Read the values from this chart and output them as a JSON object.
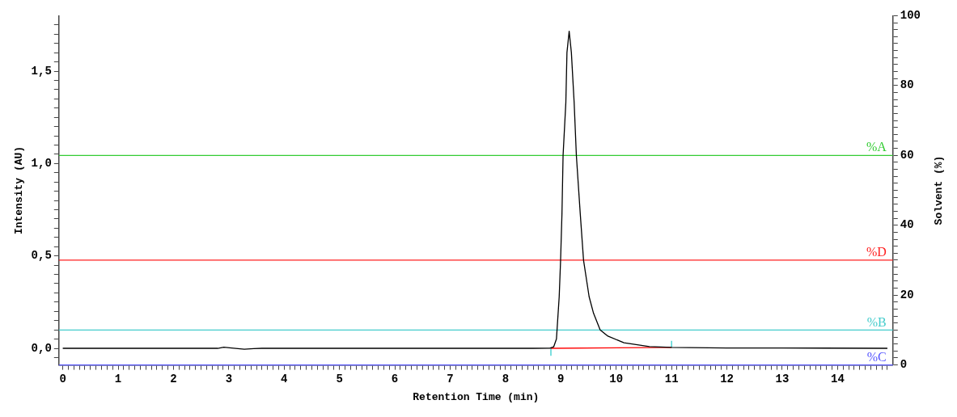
{
  "chart_data": {
    "type": "line",
    "xlabel": "Retention Time (min)",
    "ylabel": "Intensity (AU)",
    "y2label": "Solvent (%)",
    "xlim": [
      -0.07,
      15
    ],
    "ylim": [
      -0.09,
      1.8
    ],
    "y2lim": [
      0,
      100
    ],
    "xticks": [
      0,
      {
        "value": 0.1,
        "label": null
      },
      {
        "value": 0.2,
        "label": null
      },
      {
        "value": 0.3,
        "label": null
      },
      {
        "value": 0.4,
        "label": null
      },
      {
        "value": 0.5,
        "label": null
      },
      {
        "value": 0.6,
        "label": null
      },
      {
        "value": 0.7,
        "label": null
      },
      {
        "value": 0.8,
        "label": null
      },
      {
        "value": 0.9,
        "label": null
      },
      1,
      {
        "value": 1.1,
        "label": null
      },
      {
        "value": 1.2,
        "label": null
      },
      {
        "value": 1.3,
        "label": null
      },
      {
        "value": 1.4,
        "label": null
      },
      {
        "value": 1.5,
        "label": null
      },
      {
        "value": 1.6,
        "label": null
      },
      {
        "value": 1.7,
        "label": null
      },
      {
        "value": 1.8,
        "label": null
      },
      {
        "value": 1.9,
        "label": null
      },
      2,
      {
        "value": 2.1,
        "label": null
      },
      {
        "value": 2.2,
        "label": null
      },
      {
        "value": 2.3,
        "label": null
      },
      {
        "value": 2.4,
        "label": null
      },
      {
        "value": 2.5,
        "label": null
      },
      {
        "value": 2.6,
        "label": null
      },
      {
        "value": 2.7,
        "label": null
      },
      {
        "value": 2.8,
        "label": null
      },
      {
        "value": 2.9,
        "label": null
      },
      3,
      {
        "value": 3.1,
        "label": null
      },
      {
        "value": 3.2,
        "label": null
      },
      {
        "value": 3.3,
        "label": null
      },
      {
        "value": 3.4,
        "label": null
      },
      {
        "value": 3.5,
        "label": null
      },
      {
        "value": 3.6,
        "label": null
      },
      {
        "value": 3.7,
        "label": null
      },
      {
        "value": 3.8,
        "label": null
      },
      {
        "value": 3.9,
        "label": null
      },
      4,
      {
        "value": 4.1,
        "label": null
      },
      {
        "value": 4.2,
        "label": null
      },
      {
        "value": 4.3,
        "label": null
      },
      {
        "value": 4.4,
        "label": null
      },
      {
        "value": 4.5,
        "label": null
      },
      {
        "value": 4.6,
        "label": null
      },
      {
        "value": 4.7,
        "label": null
      },
      {
        "value": 4.8,
        "label": null
      },
      {
        "value": 4.9,
        "label": null
      },
      5,
      {
        "value": 5.1,
        "label": null
      },
      {
        "value": 5.2,
        "label": null
      },
      {
        "value": 5.3,
        "label": null
      },
      {
        "value": 5.4,
        "label": null
      },
      {
        "value": 5.5,
        "label": null
      },
      {
        "value": 5.6,
        "label": null
      },
      {
        "value": 5.7,
        "label": null
      },
      {
        "value": 5.8,
        "label": null
      },
      {
        "value": 5.9,
        "label": null
      },
      6,
      {
        "value": 6.1,
        "label": null
      },
      {
        "value": 6.2,
        "label": null
      },
      {
        "value": 6.3,
        "label": null
      },
      {
        "value": 6.4,
        "label": null
      },
      {
        "value": 6.5,
        "label": null
      },
      {
        "value": 6.6,
        "label": null
      },
      {
        "value": 6.7,
        "label": null
      },
      {
        "value": 6.8,
        "label": null
      },
      {
        "value": 6.9,
        "label": null
      },
      7,
      {
        "value": 7.1,
        "label": null
      },
      {
        "value": 7.2,
        "label": null
      },
      {
        "value": 7.3,
        "label": null
      },
      {
        "value": 7.4,
        "label": null
      },
      {
        "value": 7.5,
        "label": null
      },
      {
        "value": 7.6,
        "label": null
      },
      {
        "value": 7.7,
        "label": null
      },
      {
        "value": 7.8,
        "label": null
      },
      {
        "value": 7.9,
        "label": null
      },
      8,
      {
        "value": 8.1,
        "label": null
      },
      {
        "value": 8.2,
        "label": null
      },
      {
        "value": 8.3,
        "label": null
      },
      {
        "value": 8.4,
        "label": null
      },
      {
        "value": 8.5,
        "label": null
      },
      {
        "value": 8.6,
        "label": null
      },
      {
        "value": 8.7,
        "label": null
      },
      {
        "value": 8.8,
        "label": null
      },
      {
        "value": 8.9,
        "label": null
      },
      9,
      {
        "value": 9.1,
        "label": null
      },
      {
        "value": 9.2,
        "label": null
      },
      {
        "value": 9.3,
        "label": null
      },
      {
        "value": 9.4,
        "label": null
      },
      {
        "value": 9.5,
        "label": null
      },
      {
        "value": 9.6,
        "label": null
      },
      {
        "value": 9.7,
        "label": null
      },
      {
        "value": 9.8,
        "label": null
      },
      {
        "value": 9.9,
        "label": null
      },
      10,
      {
        "value": 10.1,
        "label": null
      },
      {
        "value": 10.2,
        "label": null
      },
      {
        "value": 10.3,
        "label": null
      },
      {
        "value": 10.4,
        "label": null
      },
      {
        "value": 10.5,
        "label": null
      },
      {
        "value": 10.6,
        "label": null
      },
      {
        "value": 10.7,
        "label": null
      },
      {
        "value": 10.8,
        "label": null
      },
      {
        "value": 10.9,
        "label": null
      },
      11,
      {
        "value": 11.1,
        "label": null
      },
      {
        "value": 11.2,
        "label": null
      },
      {
        "value": 11.3,
        "label": null
      },
      {
        "value": 11.4,
        "label": null
      },
      {
        "value": 11.5,
        "label": null
      },
      {
        "value": 11.6,
        "label": null
      },
      {
        "value": 11.7,
        "label": null
      },
      {
        "value": 11.8,
        "label": null
      },
      {
        "value": 11.9,
        "label": null
      },
      12,
      {
        "value": 12.1,
        "label": null
      },
      {
        "value": 12.2,
        "label": null
      },
      {
        "value": 12.3,
        "label": null
      },
      {
        "value": 12.4,
        "label": null
      },
      {
        "value": 12.5,
        "label": null
      },
      {
        "value": 12.6,
        "label": null
      },
      {
        "value": 12.7,
        "label": null
      },
      {
        "value": 12.8,
        "label": null
      },
      {
        "value": 12.9,
        "label": null
      },
      13,
      {
        "value": 13.1,
        "label": null
      },
      {
        "value": 13.2,
        "label": null
      },
      {
        "value": 13.3,
        "label": null
      },
      {
        "value": 13.4,
        "label": null
      },
      {
        "value": 13.5,
        "label": null
      },
      {
        "value": 13.6,
        "label": null
      },
      {
        "value": 13.7,
        "label": null
      },
      {
        "value": 13.8,
        "label": null
      },
      {
        "value": 13.9,
        "label": null
      },
      14,
      {
        "value": 14.1,
        "label": null
      },
      {
        "value": 14.2,
        "label": null
      },
      {
        "value": 14.3,
        "label": null
      },
      {
        "value": 14.4,
        "label": null
      },
      {
        "value": 14.5,
        "label": null
      },
      {
        "value": 14.6,
        "label": null
      },
      {
        "value": 14.7,
        "label": null
      },
      {
        "value": 14.8,
        "label": null
      },
      {
        "value": 14.9,
        "label": null
      }
    ],
    "yticks": [
      {
        "value": -0.05,
        "label": null
      },
      {
        "value": 0,
        "label": "0,0"
      },
      {
        "value": 0.05,
        "label": null
      },
      {
        "value": 0.1,
        "label": null
      },
      {
        "value": 0.15,
        "label": null
      },
      {
        "value": 0.2,
        "label": null
      },
      {
        "value": 0.25,
        "label": null
      },
      {
        "value": 0.3,
        "label": null
      },
      {
        "value": 0.35,
        "label": null
      },
      {
        "value": 0.4,
        "label": null
      },
      {
        "value": 0.45,
        "label": null
      },
      {
        "value": 0.5,
        "label": "0,5"
      },
      {
        "value": 0.55,
        "label": null
      },
      {
        "value": 0.6,
        "label": null
      },
      {
        "value": 0.65,
        "label": null
      },
      {
        "value": 0.7,
        "label": null
      },
      {
        "value": 0.75,
        "label": null
      },
      {
        "value": 0.8,
        "label": null
      },
      {
        "value": 0.85,
        "label": null
      },
      {
        "value": 0.9,
        "label": null
      },
      {
        "value": 0.95,
        "label": null
      },
      {
        "value": 1,
        "label": "1,0"
      },
      {
        "value": 1.05,
        "label": null
      },
      {
        "value": 1.1,
        "label": null
      },
      {
        "value": 1.15,
        "label": null
      },
      {
        "value": 1.2,
        "label": null
      },
      {
        "value": 1.25,
        "label": null
      },
      {
        "value": 1.3,
        "label": null
      },
      {
        "value": 1.35,
        "label": null
      },
      {
        "value": 1.4,
        "label": null
      },
      {
        "value": 1.45,
        "label": null
      },
      {
        "value": 1.5,
        "label": "1,5"
      },
      {
        "value": 1.55,
        "label": null
      },
      {
        "value": 1.6,
        "label": null
      },
      {
        "value": 1.65,
        "label": null
      },
      {
        "value": 1.7,
        "label": null
      },
      {
        "value": 1.75,
        "label": null
      }
    ],
    "y2ticks": [
      0,
      {
        "value": 2,
        "label": null
      },
      {
        "value": 4,
        "label": null
      },
      {
        "value": 6,
        "label": null
      },
      {
        "value": 8,
        "label": null
      },
      {
        "value": 10,
        "label": null
      },
      {
        "value": 12,
        "label": null
      },
      {
        "value": 14,
        "label": null
      },
      {
        "value": 16,
        "label": null
      },
      {
        "value": 18,
        "label": null
      },
      20,
      {
        "value": 22,
        "label": null
      },
      {
        "value": 24,
        "label": null
      },
      {
        "value": 26,
        "label": null
      },
      {
        "value": 28,
        "label": null
      },
      {
        "value": 30,
        "label": null
      },
      {
        "value": 32,
        "label": null
      },
      {
        "value": 34,
        "label": null
      },
      {
        "value": 36,
        "label": null
      },
      {
        "value": 38,
        "label": null
      },
      40,
      {
        "value": 42,
        "label": null
      },
      {
        "value": 44,
        "label": null
      },
      {
        "value": 46,
        "label": null
      },
      {
        "value": 48,
        "label": null
      },
      {
        "value": 50,
        "label": null
      },
      {
        "value": 52,
        "label": null
      },
      {
        "value": 54,
        "label": null
      },
      {
        "value": 56,
        "label": null
      },
      {
        "value": 58,
        "label": null
      },
      60,
      {
        "value": 62,
        "label": null
      },
      {
        "value": 64,
        "label": null
      },
      {
        "value": 66,
        "label": null
      },
      {
        "value": 68,
        "label": null
      },
      {
        "value": 70,
        "label": null
      },
      {
        "value": 72,
        "label": null
      },
      {
        "value": 74,
        "label": null
      },
      {
        "value": 76,
        "label": null
      },
      {
        "value": 78,
        "label": null
      },
      80,
      {
        "value": 82,
        "label": null
      },
      {
        "value": 84,
        "label": null
      },
      {
        "value": 86,
        "label": null
      },
      {
        "value": 88,
        "label": null
      },
      {
        "value": 90,
        "label": null
      },
      {
        "value": 92,
        "label": null
      },
      {
        "value": 94,
        "label": null
      },
      {
        "value": 96,
        "label": null
      },
      {
        "value": 98,
        "label": null
      },
      100
    ],
    "series": [
      {
        "color": "#000000",
        "x": [
          0,
          2.8,
          2.91,
          3.05,
          3.28,
          3.45,
          3.6,
          8.5,
          8.8,
          8.87,
          8.92,
          8.97,
          8.995,
          9.02,
          9.04,
          9.09,
          9.11,
          9.15,
          9.19,
          9.24,
          9.28,
          9.35,
          9.41,
          9.51,
          9.59,
          9.71,
          9.85,
          10.14,
          10.6,
          11,
          12,
          13,
          14.9
        ],
        "values": [
          0,
          0,
          0.006,
          0.002,
          -0.005,
          -0.002,
          0,
          0,
          0.001,
          0.008,
          0.05,
          0.28,
          0.476,
          0.73,
          1.044,
          1.33,
          1.6,
          1.716,
          1.6,
          1.33,
          1.044,
          0.73,
          0.476,
          0.28,
          0.19,
          0.1,
          0.066,
          0.03,
          0.009,
          0.005,
          0.002,
          0.002,
          0
        ]
      },
      {
        "color": "#ff0000",
        "x": [
          8.82,
          11
        ],
        "values": [
          0,
          0.005
        ]
      },
      {
        "color": "#33cccc",
        "x": [
          8.82,
          8.82
        ],
        "values": [
          -0.04,
          0
        ]
      },
      {
        "color": "#33cccc",
        "x": [
          11,
          11
        ],
        "values": [
          0.005,
          0.04
        ]
      }
    ],
    "ref_lines": [
      {
        "axis": "y2",
        "value": 60,
        "label": "%A",
        "color": "#33cc33"
      },
      {
        "axis": "y2",
        "value": 30,
        "label": "%D",
        "color": "#ff2020"
      },
      {
        "axis": "y2",
        "value": 10,
        "label": "%B",
        "color": "#44cccc"
      },
      {
        "axis": "y2",
        "value": 0,
        "label": "%C",
        "color": "#5555ff"
      }
    ],
    "grid": false,
    "legend": false,
    "marker": "none",
    "line_style": "solid"
  }
}
